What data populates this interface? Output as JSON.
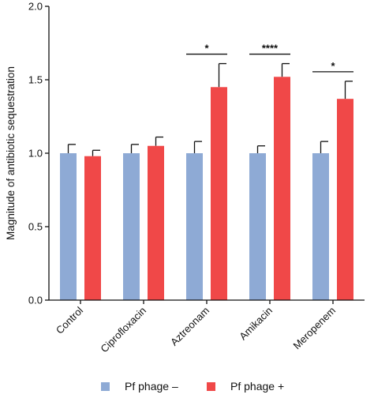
{
  "chart_data": {
    "type": "bar",
    "ylabel": "Magnitude of antibiotic sequestration",
    "xlabel": "",
    "ylim": [
      0,
      2.0
    ],
    "yticks": [
      "0.0",
      "0.5",
      "1.0",
      "1.5",
      "2.0"
    ],
    "categories": [
      "Control",
      "Ciprofloxacin",
      "Aztreonam",
      "Amikacin",
      "Meropenem"
    ],
    "series": [
      {
        "name": "Pf phage –",
        "color": "#8eaad5",
        "values": [
          1.0,
          1.0,
          1.0,
          1.0,
          1.0
        ],
        "errors": [
          0.06,
          0.06,
          0.08,
          0.05,
          0.08
        ]
      },
      {
        "name": "Pf phage +",
        "color": "#f04848",
        "values": [
          0.98,
          1.05,
          1.45,
          1.52,
          1.37
        ],
        "errors": [
          0.04,
          0.06,
          0.16,
          0.09,
          0.12
        ]
      }
    ],
    "significance": [
      {
        "category": "Aztreonam",
        "label": "*"
      },
      {
        "category": "Amikacin",
        "label": "****"
      },
      {
        "category": "Meropenem",
        "label": "*"
      }
    ],
    "legend_position": "bottom",
    "grid": false
  }
}
